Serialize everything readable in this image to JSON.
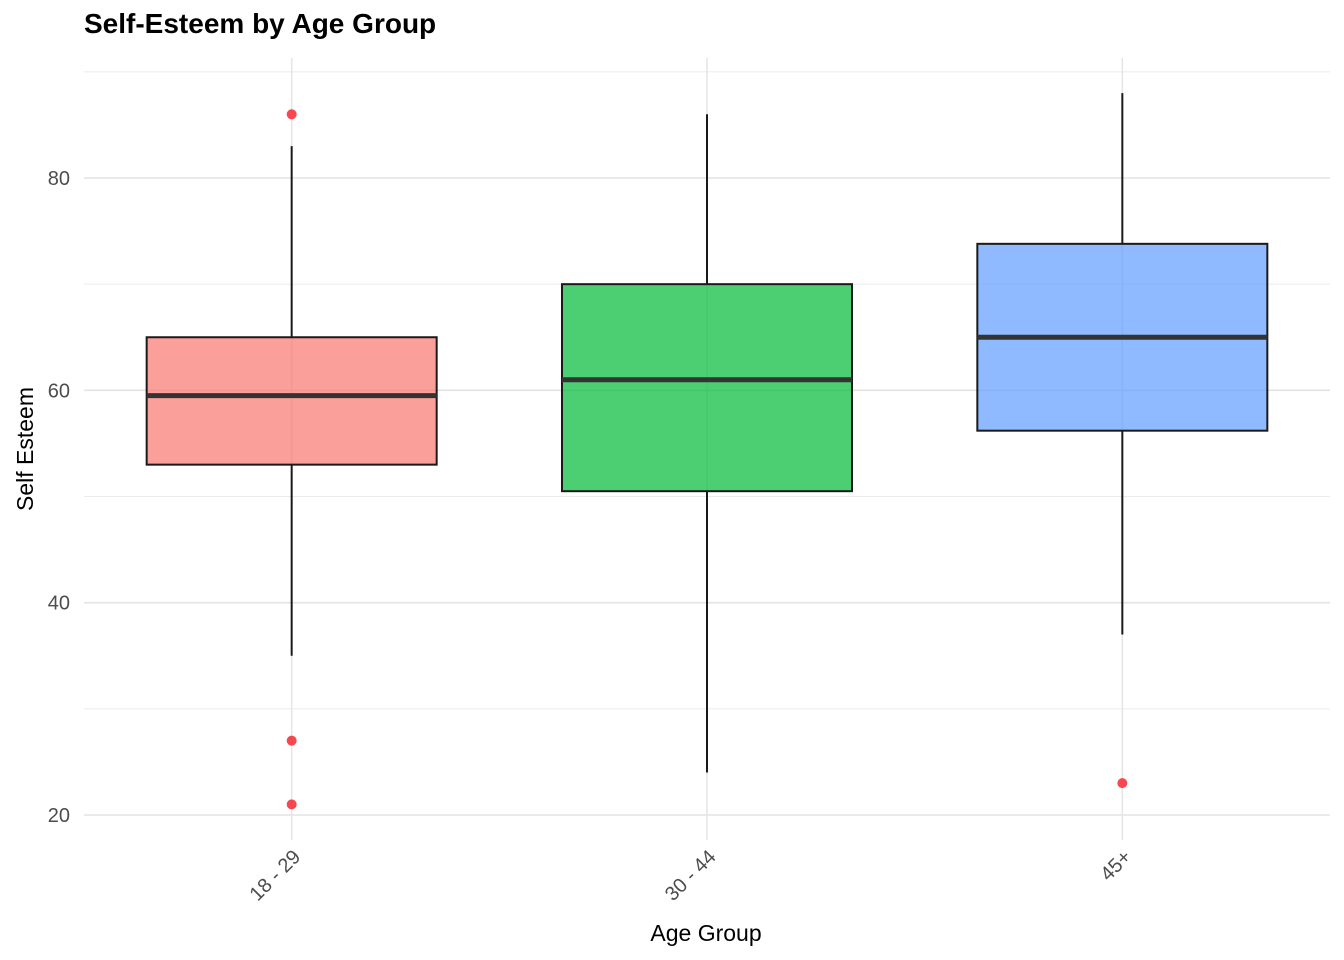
{
  "chart_data": {
    "type": "boxplot",
    "title": "Self-Esteem by Age Group",
    "xlabel": "Age Group",
    "ylabel": "Self Esteem",
    "ylim": [
      18,
      91
    ],
    "y_ticks": [
      20,
      40,
      60,
      80
    ],
    "grid": true,
    "categories": [
      "18 - 29",
      "30 - 44",
      "45+"
    ],
    "boxes": [
      {
        "category": "18 - 29",
        "whisker_low": 35,
        "q1": 53,
        "median": 59.5,
        "q3": 65,
        "whisker_high": 83,
        "outliers": [
          86,
          27,
          21
        ],
        "color": "#F8766D"
      },
      {
        "category": "30 - 44",
        "whisker_low": 24,
        "q1": 50.5,
        "median": 61,
        "q3": 70,
        "whisker_high": 86,
        "outliers": [],
        "color": "#00BA38"
      },
      {
        "category": "45+",
        "whisker_low": 37,
        "q1": 56.2,
        "median": 65,
        "q3": 73.8,
        "whisker_high": 88,
        "outliers": [
          23
        ],
        "color": "#619CFF"
      }
    ],
    "outlier_color": "#F8333C"
  }
}
